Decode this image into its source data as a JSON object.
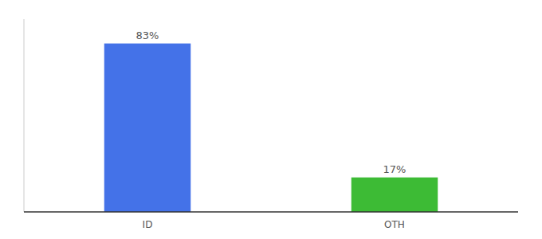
{
  "chart_data": {
    "type": "bar",
    "categories": [
      "ID",
      "OTH"
    ],
    "values": [
      83,
      17
    ],
    "value_labels": [
      "83%",
      "17%"
    ],
    "colors": [
      "#4472e8",
      "#3dbb35"
    ],
    "ylim": [
      0,
      95
    ],
    "data_labels": true,
    "tick_labels": "x"
  }
}
